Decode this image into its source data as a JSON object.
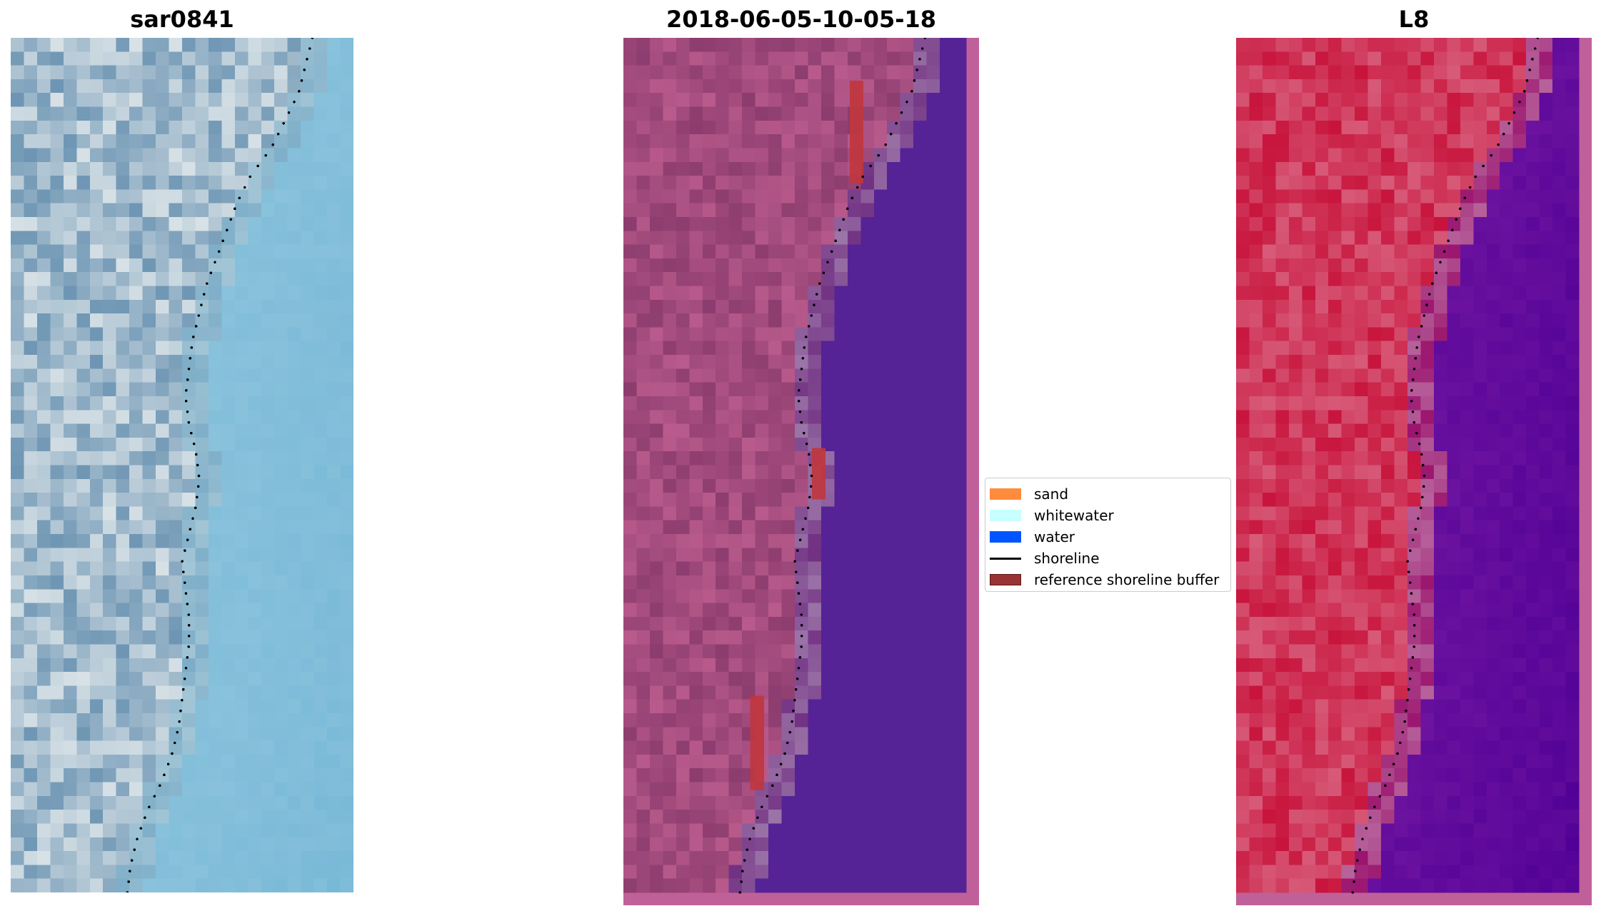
{
  "panels": [
    {
      "title": "sar0841",
      "image": "rgb-satellite-shoreline-image"
    },
    {
      "title": "2018-06-05-10-05-18",
      "image": "classified-shoreline-image"
    },
    {
      "title": "L8",
      "image": "false-color-shoreline-image"
    }
  ],
  "legend": {
    "items": [
      {
        "label": "sand",
        "color": "#ff8c3c",
        "kind": "patch"
      },
      {
        "label": "whitewater",
        "color": "#c8ffff",
        "kind": "patch"
      },
      {
        "label": "water",
        "color": "#0055ff",
        "kind": "patch"
      },
      {
        "label": "shoreline",
        "color": "#000000",
        "kind": "line"
      },
      {
        "label": "reference shoreline buffer",
        "color": "#993333",
        "kind": "patch"
      }
    ]
  }
}
